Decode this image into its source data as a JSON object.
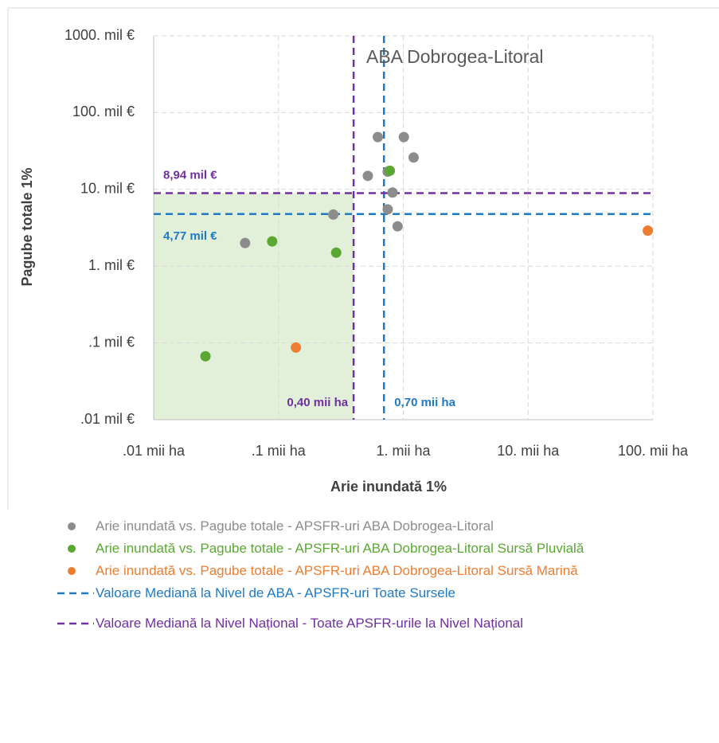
{
  "chart_data": {
    "type": "scatter",
    "title": "ABA Dobrogea-Litoral",
    "x_label": "Arie inundată 1%",
    "y_label": "Pagube totale 1%",
    "xscale": "log",
    "yscale": "log",
    "grid": true,
    "xlim": [
      0.01,
      100
    ],
    "ylim": [
      0.01,
      1000
    ],
    "xticks": [
      {
        "value": 0.01,
        "label": ".01 mii ha"
      },
      {
        "value": 0.1,
        "label": ".1 mii ha"
      },
      {
        "value": 1,
        "label": "1. mii ha"
      },
      {
        "value": 10,
        "label": "10. mii ha"
      },
      {
        "value": 100,
        "label": "100. mii ha"
      }
    ],
    "yticks": [
      {
        "value": 0.01,
        "label": ".01 mil €"
      },
      {
        "value": 0.1,
        "label": ".1 mil €"
      },
      {
        "value": 1,
        "label": "1. mil €"
      },
      {
        "value": 10,
        "label": "10. mil €"
      },
      {
        "value": 100,
        "label": "100. mil €"
      },
      {
        "value": 1000,
        "label": "1000. mil €"
      }
    ],
    "series": [
      {
        "name": "Arie inundată vs. Pagube totale - APSFR-uri ABA Dobrogea-Litoral",
        "color": "#8c8c8c",
        "x": [
          0.625,
          1.01,
          1.21,
          0.52,
          0.75,
          0.82,
          0.75,
          0.9,
          0.275,
          0.054
        ],
        "y": [
          48,
          48,
          26,
          15,
          17,
          9.1,
          5.5,
          3.3,
          4.7,
          2.0
        ]
      },
      {
        "name": "Arie inundată vs. Pagube totale - APSFR-uri ABA Dobrogea-Litoral Sursă Pluvială",
        "color": "#5aa832",
        "x": [
          0.78,
          0.089,
          0.29,
          0.026
        ],
        "y": [
          17.5,
          2.1,
          1.5,
          0.067
        ]
      },
      {
        "name": "Arie inundată vs. Pagube totale - APSFR-uri ABA Dobrogea-Litoral Sursă Marină",
        "color": "#ed7d31",
        "x": [
          91,
          0.138
        ],
        "y": [
          2.9,
          0.087
        ]
      }
    ],
    "reference_lines": [
      {
        "name": "Valoare Mediană la Nivel de ABA - APSFR-uri  Toate Sursele",
        "color": "#1f7ac4",
        "x": 0.7,
        "y": 4.77,
        "x_label": "0,70 mii ha",
        "y_label": "4,77 mil €"
      },
      {
        "name": "Valoare Mediană la Nivel Național - Toate APSFR-urile la Nivel Național",
        "color": "#7030a0",
        "x": 0.4,
        "y": 8.94,
        "x_label": "0,40 mii ha",
        "y_label": "8,94 mil €"
      }
    ]
  }
}
